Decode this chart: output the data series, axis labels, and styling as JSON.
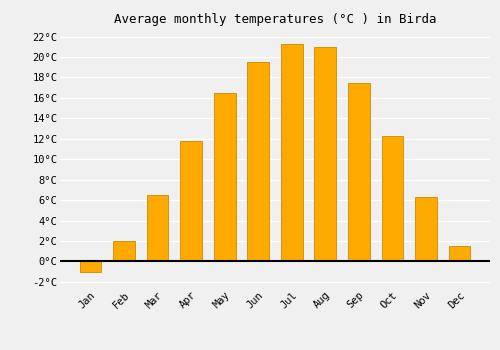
{
  "months": [
    "Jan",
    "Feb",
    "Mar",
    "Apr",
    "May",
    "Jun",
    "Jul",
    "Aug",
    "Sep",
    "Oct",
    "Nov",
    "Dec"
  ],
  "temperatures": [
    -1.0,
    2.0,
    6.5,
    11.8,
    16.5,
    19.5,
    21.3,
    21.0,
    17.5,
    12.3,
    6.3,
    1.5
  ],
  "bar_color": "#FFAA00",
  "bar_edge_color": "#CC8800",
  "title": "Average monthly temperatures (°C ) in Birda",
  "ylim": [
    -2.5,
    22.5
  ],
  "yticks": [
    -2,
    0,
    2,
    4,
    6,
    8,
    10,
    12,
    14,
    16,
    18,
    20,
    22
  ],
  "ytick_labels": [
    "-2°C",
    "0°C",
    "2°C",
    "4°C",
    "6°C",
    "8°C",
    "10°C",
    "12°C",
    "14°C",
    "16°C",
    "18°C",
    "20°C",
    "22°C"
  ],
  "background_color": "#f0f0f0",
  "plot_bg_color": "#f0f0f0",
  "grid_color": "#ffffff",
  "title_fontsize": 9,
  "tick_fontsize": 7.5,
  "bar_width": 0.65
}
